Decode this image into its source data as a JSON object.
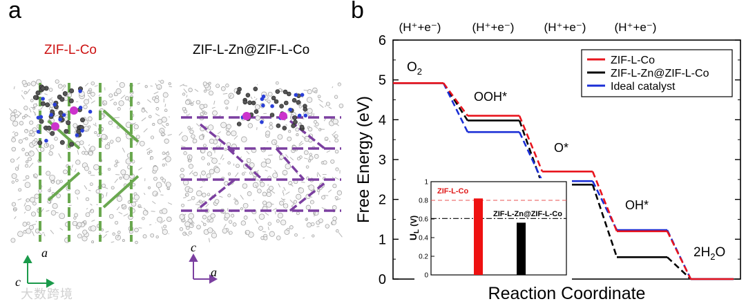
{
  "panels": {
    "a": {
      "letter": "a",
      "left_title": "ZIF-L-Co",
      "right_title": "ZIF-L-Zn@ZIF-L-Co",
      "left_axes": {
        "vertical": "a",
        "horizontal": "c"
      },
      "right_axes": {
        "vertical": "c",
        "horizontal": "a"
      },
      "colors": {
        "left_links": "#6aa84f",
        "right_links": "#7b3fa0",
        "title_red": "#cc1111",
        "metal": "#cc33cc"
      }
    },
    "b": {
      "letter": "b"
    }
  },
  "watermark": "大数跨境",
  "chart_data": [
    {
      "type": "line",
      "style": "free-energy-step-diagram",
      "title": "",
      "xlabel": "Reaction Coordinate",
      "ylabel": "Free Energy (eV)",
      "ylim": [
        0,
        6
      ],
      "yticks": [
        0,
        1,
        2,
        3,
        4,
        5,
        6
      ],
      "step_labels": [
        "(H⁺+e⁻)",
        "(H⁺+e⁻)",
        "(H⁺+e⁻)",
        "(H⁺+e⁻)"
      ],
      "states": [
        "O2",
        "OOH*",
        "O*",
        "OH*",
        "2H2O"
      ],
      "state_labels": {
        "O2": "O",
        "O2_sub": "2",
        "OOH": "OOH*",
        "O": "O*",
        "OH": "OH*",
        "H2O_pre": "2H",
        "H2O_sub": "2",
        "H2O_post": "O"
      },
      "legend": {
        "placement": "top-right"
      },
      "series": [
        {
          "name": "ZIF-L-Co",
          "color": "#e8141d",
          "values": [
            4.92,
            4.1,
            2.7,
            1.2,
            0
          ]
        },
        {
          "name": "ZIF-L-Zn@ZIF-L-Co",
          "color": "#000000",
          "values": [
            4.92,
            3.98,
            2.37,
            0.55,
            0
          ]
        },
        {
          "name": "Ideal catalyst",
          "color": "#1a2ed6",
          "values": [
            4.92,
            3.69,
            2.46,
            1.23,
            0
          ]
        }
      ]
    },
    {
      "type": "bar",
      "title": "",
      "xlabel": "",
      "ylabel": "U",
      "ylabel_sub": "L",
      "ylabel_unit": "(V)",
      "ylim": [
        0,
        1
      ],
      "yticks": [
        0,
        0.2,
        0.4,
        0.6,
        0.8,
        1
      ],
      "categories": [
        "ZIF-L-Co",
        "ZIF-L-Zn@ZIF-L-Co"
      ],
      "values": [
        0.82,
        0.56
      ],
      "colors": [
        "#ee1111",
        "#000000"
      ],
      "reference_lines": [
        {
          "value": 0.8,
          "color": "#e85050",
          "style": "dashed"
        },
        {
          "value": 0.605,
          "color": "#000000",
          "style": "dashdot"
        }
      ]
    }
  ]
}
